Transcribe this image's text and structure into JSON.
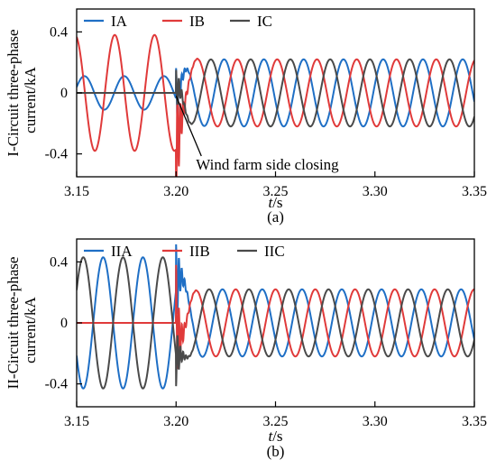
{
  "chart_data": [
    {
      "type": "line",
      "panel": "(a)",
      "xlabel_italic": "t",
      "xlabel_unit": "/s",
      "ylabel_line1": "I-Circuit three-phase",
      "ylabel_line2": "current/kA",
      "xlim": [
        3.15,
        3.35
      ],
      "ylim": [
        -0.55,
        0.55
      ],
      "xticks": [
        3.15,
        3.2,
        3.25,
        3.3,
        3.35
      ],
      "xtick_labels": [
        "3.15",
        "3.20",
        "3.25",
        "3.30",
        "3.35"
      ],
      "yticks": [
        0.4,
        0,
        -0.4
      ],
      "ytick_labels": [
        "0.4",
        "0",
        "-0.4"
      ],
      "grid": false,
      "legend_position": "top-left",
      "frequency_hz": 50,
      "switch_time": 3.2,
      "series": [
        {
          "name": "IA",
          "color": "#1f6fc5",
          "pre_amplitude": 0.11,
          "pre_phase_deg": 20,
          "post_amplitude": 0.22,
          "post_phase_deg": 15,
          "transient_peak": 0.2
        },
        {
          "name": "IB",
          "color": "#e03a3a",
          "pre_amplitude": 0.38,
          "pre_phase_deg": 105,
          "post_amplitude": 0.22,
          "post_phase_deg": -105,
          "transient_peak": -0.48
        },
        {
          "name": "IC",
          "color": "#4a4a4a",
          "pre_amplitude": 0.0,
          "pre_phase_deg": 0,
          "post_amplitude": 0.22,
          "post_phase_deg": 135,
          "transient_peak": 0.15
        }
      ],
      "annotation": {
        "text": "Wind farm side closing",
        "x": 3.2,
        "y": -0.02
      }
    },
    {
      "type": "line",
      "panel": "(b)",
      "xlabel_italic": "t",
      "xlabel_unit": "/s",
      "ylabel_line1": "II-Circuit three-phase",
      "ylabel_line2": "current/kA",
      "xlim": [
        3.15,
        3.35
      ],
      "ylim": [
        -0.55,
        0.55
      ],
      "xticks": [
        3.15,
        3.2,
        3.25,
        3.3,
        3.35
      ],
      "xtick_labels": [
        "3.15",
        "3.20",
        "3.25",
        "3.30",
        "3.35"
      ],
      "yticks": [
        0.4,
        0,
        -0.4
      ],
      "ytick_labels": [
        "0.4",
        "0",
        "-0.4"
      ],
      "grid": false,
      "legend_position": "top-left",
      "frequency_hz": 50,
      "switch_time": 3.2,
      "series": [
        {
          "name": "IIA",
          "color": "#1f6fc5",
          "pre_amplitude": 0.43,
          "pre_phase_deg": -150,
          "post_amplitude": 0.22,
          "post_phase_deg": 30,
          "transient_peak": 0.3
        },
        {
          "name": "IIB",
          "color": "#e03a3a",
          "pre_amplitude": 0.0,
          "pre_phase_deg": 0,
          "post_amplitude": 0.22,
          "post_phase_deg": -90,
          "transient_peak": 0.38
        },
        {
          "name": "IIC",
          "color": "#4a4a4a",
          "pre_amplitude": 0.43,
          "pre_phase_deg": 30,
          "post_amplitude": 0.22,
          "post_phase_deg": 150,
          "transient_peak": -0.2
        }
      ]
    }
  ]
}
